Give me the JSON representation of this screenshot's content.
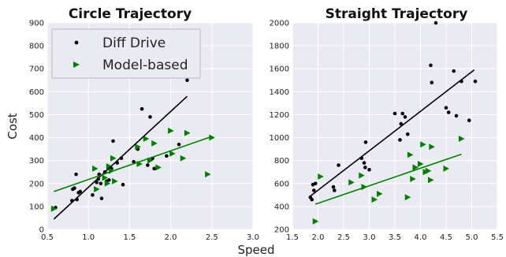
{
  "shared_xlabel": "Speed",
  "shared_ylabel": "Cost",
  "legend": {
    "entries": [
      {
        "label": "Diff Drive",
        "marker": "dot",
        "color": "#000000"
      },
      {
        "label": "Model-based",
        "marker": "triangle-right",
        "color": "#008000"
      }
    ],
    "placement": "upper-left of left panel"
  },
  "colors": {
    "panel_bg": "#eaeaf2",
    "grid": "#ffffff",
    "diff_drive": "#000000",
    "model_based": "#008000"
  },
  "chart_data": [
    {
      "type": "scatter",
      "title": "Circle Trajectory",
      "xlim": [
        0.5,
        3.0
      ],
      "ylim": [
        0,
        900
      ],
      "xticks": [
        "0.5",
        "1.0",
        "1.5",
        "2.0",
        "2.5",
        "3.0"
      ],
      "yticks": [
        "0",
        "100",
        "200",
        "300",
        "400",
        "500",
        "600",
        "700",
        "800",
        "900"
      ],
      "xtick_values": [
        0.5,
        1.0,
        1.5,
        2.0,
        2.5,
        3.0
      ],
      "ytick_values": [
        0,
        100,
        200,
        300,
        400,
        500,
        600,
        700,
        800,
        900
      ],
      "grid": true,
      "series": [
        {
          "name": "Diff Drive",
          "marker": "dot",
          "color": "#000000",
          "points": [
            [
              0.6,
              95
            ],
            [
              0.8,
              125
            ],
            [
              0.81,
              175
            ],
            [
              0.83,
              180
            ],
            [
              0.85,
              240
            ],
            [
              0.86,
              130
            ],
            [
              0.88,
              160
            ],
            [
              0.9,
              165
            ],
            [
              1.05,
              150
            ],
            [
              1.1,
              205
            ],
            [
              1.12,
              220
            ],
            [
              1.13,
              240
            ],
            [
              1.15,
              200
            ],
            [
              1.16,
              135
            ],
            [
              1.2,
              250
            ],
            [
              1.22,
              210
            ],
            [
              1.25,
              215
            ],
            [
              1.28,
              265
            ],
            [
              1.3,
              385
            ],
            [
              1.35,
              290
            ],
            [
              1.4,
              310
            ],
            [
              1.42,
              195
            ],
            [
              1.55,
              295
            ],
            [
              1.6,
              350
            ],
            [
              1.65,
              525
            ],
            [
              1.72,
              280
            ],
            [
              1.75,
              490
            ],
            [
              1.78,
              310
            ],
            [
              1.8,
              265
            ],
            [
              1.95,
              320
            ],
            [
              2.1,
              370
            ],
            [
              2.2,
              650
            ]
          ]
        },
        {
          "name": "Model-based",
          "marker": "triangle-right",
          "color": "#008000",
          "points": [
            [
              0.58,
              90
            ],
            [
              1.08,
              265
            ],
            [
              1.1,
              175
            ],
            [
              1.2,
              225
            ],
            [
              1.23,
              200
            ],
            [
              1.25,
              275
            ],
            [
              1.28,
              255
            ],
            [
              1.3,
              310
            ],
            [
              1.32,
              210
            ],
            [
              1.6,
              360
            ],
            [
              1.62,
              285
            ],
            [
              1.7,
              395
            ],
            [
              1.75,
              300
            ],
            [
              1.8,
              375
            ],
            [
              1.85,
              270
            ],
            [
              2.0,
              430
            ],
            [
              2.02,
              330
            ],
            [
              2.15,
              310
            ],
            [
              2.2,
              420
            ],
            [
              2.45,
              240
            ],
            [
              2.5,
              400
            ]
          ]
        }
      ],
      "fit_lines": [
        {
          "series": "Diff Drive",
          "color": "#000000",
          "from": [
            0.58,
            45
          ],
          "to": [
            2.2,
            580
          ]
        },
        {
          "series": "Model-based",
          "color": "#008000",
          "from": [
            0.58,
            165
          ],
          "to": [
            2.5,
            405
          ]
        }
      ]
    },
    {
      "type": "scatter",
      "title": "Straight Trajectory",
      "xlim": [
        1.5,
        5.5
      ],
      "ylim": [
        200,
        2000
      ],
      "xticks": [
        "1.5",
        "2.0",
        "2.5",
        "3.0",
        "3.5",
        "4.0",
        "4.5",
        "5.0",
        "5.5"
      ],
      "yticks": [
        "200",
        "400",
        "600",
        "800",
        "1000",
        "1200",
        "1400",
        "1600",
        "1800",
        "2000"
      ],
      "xtick_values": [
        1.5,
        2.0,
        2.5,
        3.0,
        3.5,
        4.0,
        4.5,
        5.0,
        5.5
      ],
      "ytick_values": [
        200,
        400,
        600,
        800,
        1000,
        1200,
        1400,
        1600,
        1800,
        2000
      ],
      "grid": true,
      "series": [
        {
          "name": "Diff Drive",
          "marker": "dot",
          "color": "#000000",
          "points": [
            [
              1.85,
              480
            ],
            [
              1.88,
              460
            ],
            [
              1.9,
              590
            ],
            [
              1.92,
              540
            ],
            [
              1.95,
              600
            ],
            [
              2.3,
              570
            ],
            [
              2.32,
              540
            ],
            [
              2.4,
              760
            ],
            [
              2.85,
              820
            ],
            [
              2.9,
              780
            ],
            [
              2.92,
              740
            ],
            [
              2.93,
              960
            ],
            [
              3.0,
              720
            ],
            [
              3.5,
              1210
            ],
            [
              3.6,
              980
            ],
            [
              3.62,
              1120
            ],
            [
              3.65,
              1210
            ],
            [
              3.7,
              1180
            ],
            [
              3.75,
              1030
            ],
            [
              4.2,
              1630
            ],
            [
              4.22,
              1480
            ],
            [
              4.3,
              2000
            ],
            [
              4.5,
              1260
            ],
            [
              4.55,
              1220
            ],
            [
              4.65,
              1580
            ],
            [
              4.7,
              1190
            ],
            [
              4.8,
              1490
            ],
            [
              4.95,
              1150
            ],
            [
              5.07,
              1490
            ]
          ]
        },
        {
          "name": "Model-based",
          "marker": "triangle-right",
          "color": "#008000",
          "points": [
            [
              1.95,
              270
            ],
            [
              2.05,
              660
            ],
            [
              2.65,
              610
            ],
            [
              2.85,
              670
            ],
            [
              2.9,
              570
            ],
            [
              3.1,
              460
            ],
            [
              3.2,
              510
            ],
            [
              3.75,
              480
            ],
            [
              3.8,
              850
            ],
            [
              3.85,
              640
            ],
            [
              3.9,
              740
            ],
            [
              4.0,
              770
            ],
            [
              4.05,
              940
            ],
            [
              4.1,
              700
            ],
            [
              4.15,
              710
            ],
            [
              4.2,
              630
            ],
            [
              4.22,
              920
            ],
            [
              4.5,
              730
            ],
            [
              4.8,
              990
            ]
          ]
        }
      ],
      "fit_lines": [
        {
          "series": "Diff Drive",
          "color": "#000000",
          "from": [
            1.85,
            490
          ],
          "to": [
            5.05,
            1590
          ]
        },
        {
          "series": "Model-based",
          "color": "#008000",
          "from": [
            1.95,
            420
          ],
          "to": [
            4.8,
            855
          ]
        }
      ]
    }
  ]
}
